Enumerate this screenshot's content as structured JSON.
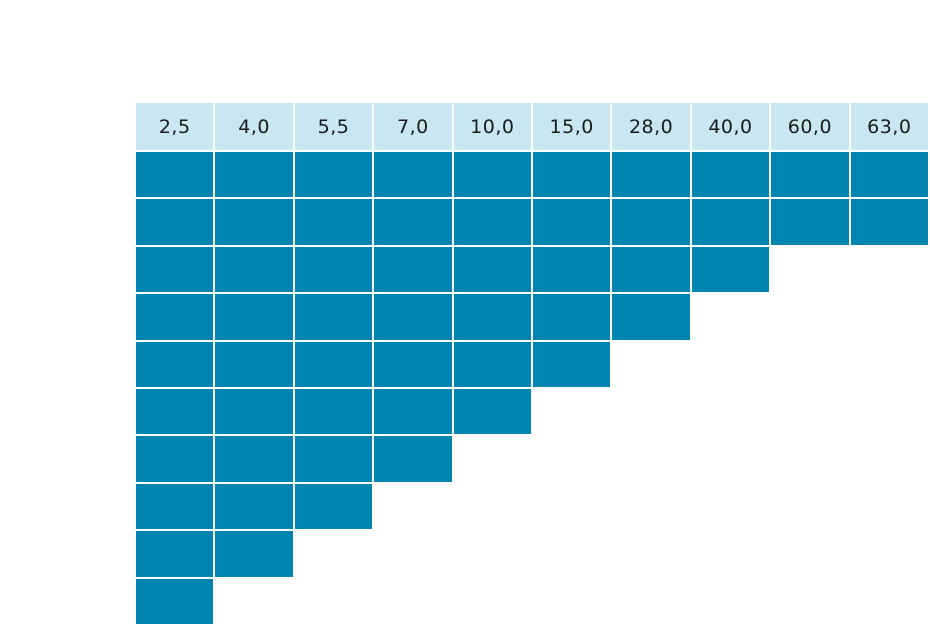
{
  "colors": {
    "header_bg": "#c9e7f1",
    "filled_cell": "#0085b1",
    "background": "#ffffff"
  },
  "table": {
    "columns": [
      "2,5",
      "4,0",
      "5,5",
      "7,0",
      "10,0",
      "15,0",
      "28,0",
      "40,0",
      "60,0",
      "63,0"
    ],
    "filled_rows_per_column": [
      10,
      9,
      8,
      7,
      6,
      5,
      4,
      3,
      2,
      2
    ]
  }
}
